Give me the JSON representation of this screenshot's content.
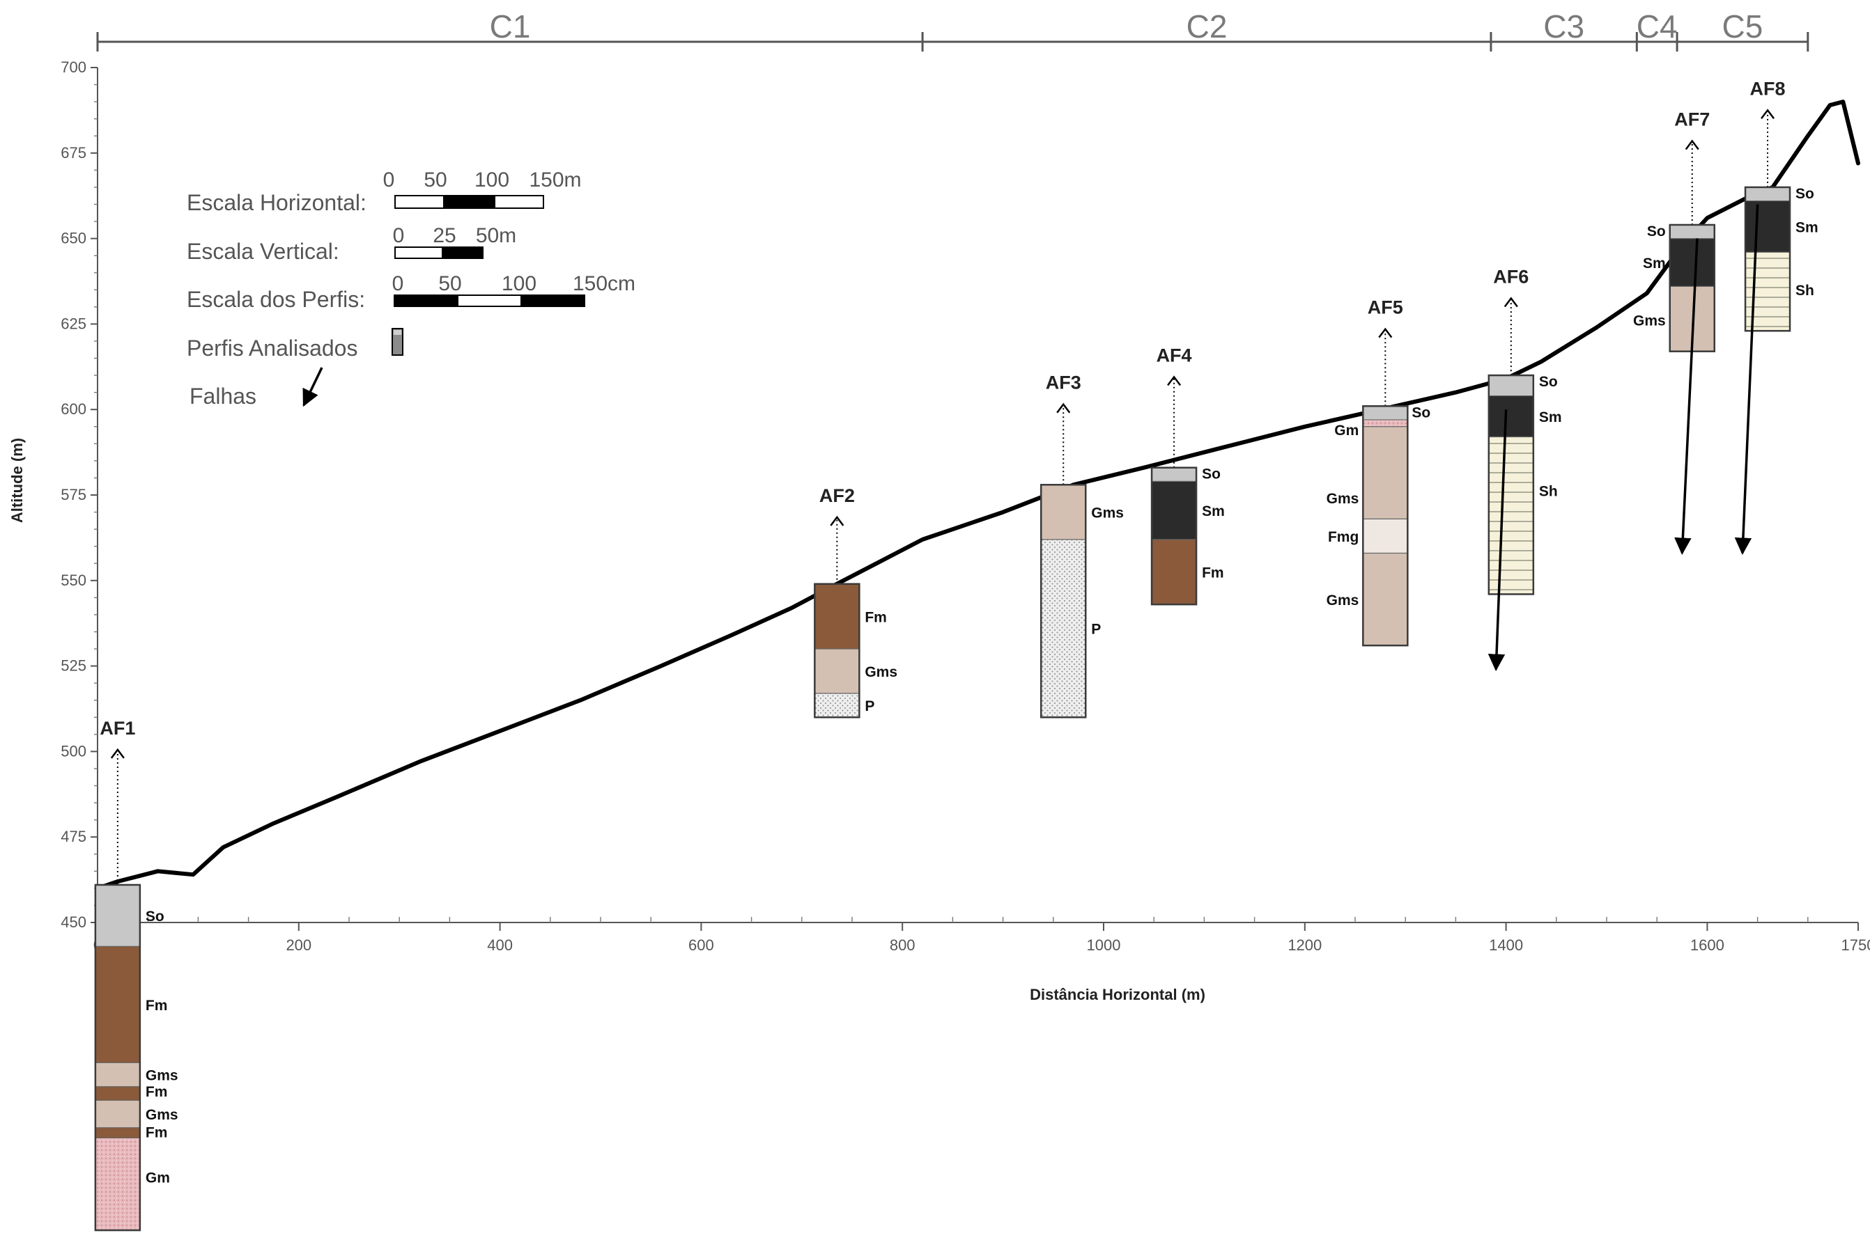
{
  "segments": {
    "labels": [
      "C1",
      "C2",
      "C3",
      "C4",
      "C5"
    ],
    "boundaries_m": [
      0,
      820,
      1385,
      1530,
      1570,
      1700
    ]
  },
  "legend": {
    "horizontal_scale": {
      "label": "Escala Horizontal:",
      "ticks": [
        "0",
        "50",
        "100",
        "150m"
      ]
    },
    "vertical_scale": {
      "label": "Escala Vertical:",
      "ticks": [
        "0",
        "25",
        "50m"
      ]
    },
    "profile_scale": {
      "label": "Escala dos Perfis:",
      "ticks": [
        "0",
        "50",
        "100",
        "150cm"
      ]
    },
    "profiles_label": "Perfis Analisados",
    "faults_label": "Falhas"
  },
  "colors": {
    "So": "#c7c7c7",
    "Fm": "#8a5a3a",
    "Gms": "#d4c0b2",
    "Gm": "#e8b9bd",
    "Sm": "#2b2b2b",
    "Sh": "#f6f1da",
    "Fmg": "#efe7e2",
    "P": "#eeeeee",
    "terrain": "#000000"
  },
  "chart_data": {
    "type": "line",
    "xlabel": "Distância Horizontal (m)",
    "ylabel": "Altitude (m)",
    "xlim": [
      0,
      1750
    ],
    "ylim": [
      450,
      700
    ],
    "xticks": [
      "0",
      "200",
      "400",
      "600",
      "800",
      "1000",
      "1200",
      "1400",
      "1600",
      "1750"
    ],
    "yticks": [
      "450",
      "475",
      "500",
      "525",
      "550",
      "575",
      "600",
      "625",
      "650",
      "675",
      "700"
    ],
    "terrain_profile": {
      "x": [
        0,
        20,
        60,
        95,
        125,
        175,
        240,
        320,
        400,
        480,
        560,
        630,
        690,
        735,
        820,
        900,
        970,
        1040,
        1120,
        1200,
        1290,
        1350,
        1400,
        1435,
        1490,
        1540,
        1575,
        1600,
        1640,
        1665,
        1700,
        1722,
        1735,
        1750
      ],
      "y": [
        460,
        462,
        465,
        464,
        472,
        479,
        487,
        497,
        506,
        515,
        525,
        534,
        542,
        549,
        562,
        570,
        578,
        583,
        589,
        595,
        601,
        605,
        609,
        614,
        624,
        634,
        648,
        656,
        662,
        665,
        680,
        689,
        690,
        672
      ]
    },
    "profiles": [
      {
        "name": "AF1",
        "x": 20,
        "base": 360,
        "label_y": 505,
        "layers": [
          {
            "code": "So",
            "top": 461,
            "bottom": 443
          },
          {
            "code": "Fm",
            "top": 443,
            "bottom": 409
          },
          {
            "code": "Gms",
            "top": 409,
            "bottom": 402
          },
          {
            "code": "Fm",
            "top": 402,
            "bottom": 398
          },
          {
            "code": "Gms",
            "top": 398,
            "bottom": 390
          },
          {
            "code": "Fm",
            "top": 390,
            "bottom": 387
          },
          {
            "code": "Gm",
            "top": 387,
            "bottom": 360
          }
        ]
      },
      {
        "name": "AF2",
        "x": 735,
        "base": 510,
        "label_y": 573,
        "layers": [
          {
            "code": "Fm",
            "top": 549,
            "bottom": 530
          },
          {
            "code": "Gms",
            "top": 530,
            "bottom": 517
          },
          {
            "code": "P",
            "top": 517,
            "bottom": 510
          }
        ]
      },
      {
        "name": "AF3",
        "x": 960,
        "base": 510,
        "label_y": 606,
        "layers": [
          {
            "code": "Gms",
            "top": 578,
            "bottom": 562
          },
          {
            "code": "P",
            "top": 562,
            "bottom": 510
          }
        ]
      },
      {
        "name": "AF4",
        "x": 1070,
        "base": 543,
        "label_y": 614,
        "layers": [
          {
            "code": "So",
            "top": 583,
            "bottom": 579
          },
          {
            "code": "Sm",
            "top": 579,
            "bottom": 562
          },
          {
            "code": "Fm",
            "top": 562,
            "bottom": 543
          }
        ]
      },
      {
        "name": "AF5",
        "x": 1280,
        "base": 531,
        "label_y": 628,
        "layers": [
          {
            "code": "So",
            "top": 601,
            "bottom": 597
          },
          {
            "code": "Gm",
            "top": 597,
            "bottom": 595
          },
          {
            "code": "Gms",
            "top": 595,
            "bottom": 568
          },
          {
            "code": "Fmg",
            "top": 568,
            "bottom": 558
          },
          {
            "code": "Gms",
            "top": 558,
            "bottom": 531
          }
        ]
      },
      {
        "name": "AF6",
        "x": 1405,
        "base": 546,
        "label_y": 637,
        "layers": [
          {
            "code": "So",
            "top": 610,
            "bottom": 604
          },
          {
            "code": "Sm",
            "top": 604,
            "bottom": 592
          },
          {
            "code": "Sh",
            "top": 592,
            "bottom": 546
          }
        ]
      },
      {
        "name": "AF7",
        "x": 1585,
        "base": 617,
        "label_y": 683,
        "layers": [
          {
            "code": "So",
            "top": 654,
            "bottom": 650
          },
          {
            "code": "Sm",
            "top": 650,
            "bottom": 636
          },
          {
            "code": "Gms",
            "top": 636,
            "bottom": 617
          }
        ]
      },
      {
        "name": "AF8",
        "x": 1660,
        "base": 623,
        "label_y": 692,
        "layers": [
          {
            "code": "So",
            "top": 665,
            "bottom": 661
          },
          {
            "code": "Sm",
            "top": 661,
            "bottom": 646
          },
          {
            "code": "Sh",
            "top": 646,
            "bottom": 623
          }
        ]
      }
    ],
    "faults": [
      {
        "from": [
          1400,
          600
        ],
        "to": [
          1390,
          524
        ]
      },
      {
        "from": [
          1590,
          650
        ],
        "to": [
          1575,
          558
        ]
      },
      {
        "from": [
          1650,
          660
        ],
        "to": [
          1635,
          558
        ]
      }
    ]
  }
}
